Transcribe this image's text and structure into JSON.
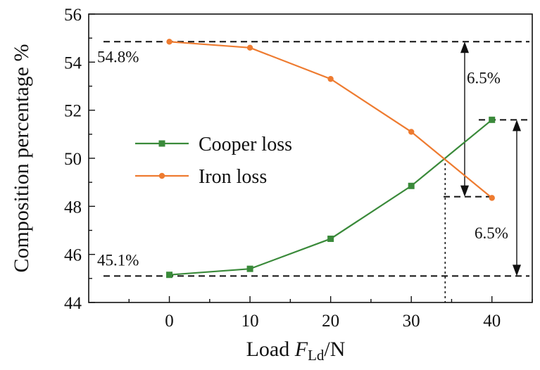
{
  "chart_data": {
    "type": "line",
    "xlabel_prefix": "Load ",
    "xlabel_var": "F",
    "xlabel_sub": "Ld",
    "xlabel_suffix": "/N",
    "ylabel": "Composition percentage  %",
    "x": [
      0,
      10,
      20,
      30,
      40
    ],
    "xlim": [
      -10,
      45
    ],
    "ylim": [
      44,
      56
    ],
    "xticks": [
      "0",
      "10",
      "20",
      "30",
      "40"
    ],
    "yticks": [
      "44",
      "46",
      "48",
      "50",
      "52",
      "54",
      "56"
    ],
    "series": [
      {
        "name": "Cooper loss",
        "color": "#3a8a3a",
        "marker": "square",
        "values": [
          45.15,
          45.4,
          46.65,
          48.85,
          51.6
        ]
      },
      {
        "name": "Iron loss",
        "color": "#ee7b30",
        "marker": "circle",
        "values": [
          54.85,
          54.6,
          53.3,
          51.1,
          48.35
        ]
      }
    ],
    "reference_lines": {
      "iron_start": 54.85,
      "iron_end": 48.4,
      "copper_start": 45.1,
      "copper_end": 51.6,
      "crossover_x": 34.2
    },
    "annotations": {
      "iron_start_label": "54.8%",
      "copper_start_label": "45.1%",
      "iron_change_label": "6.5%",
      "copper_change_label": "6.5%"
    },
    "grid": false,
    "legend_position": "center-left"
  }
}
